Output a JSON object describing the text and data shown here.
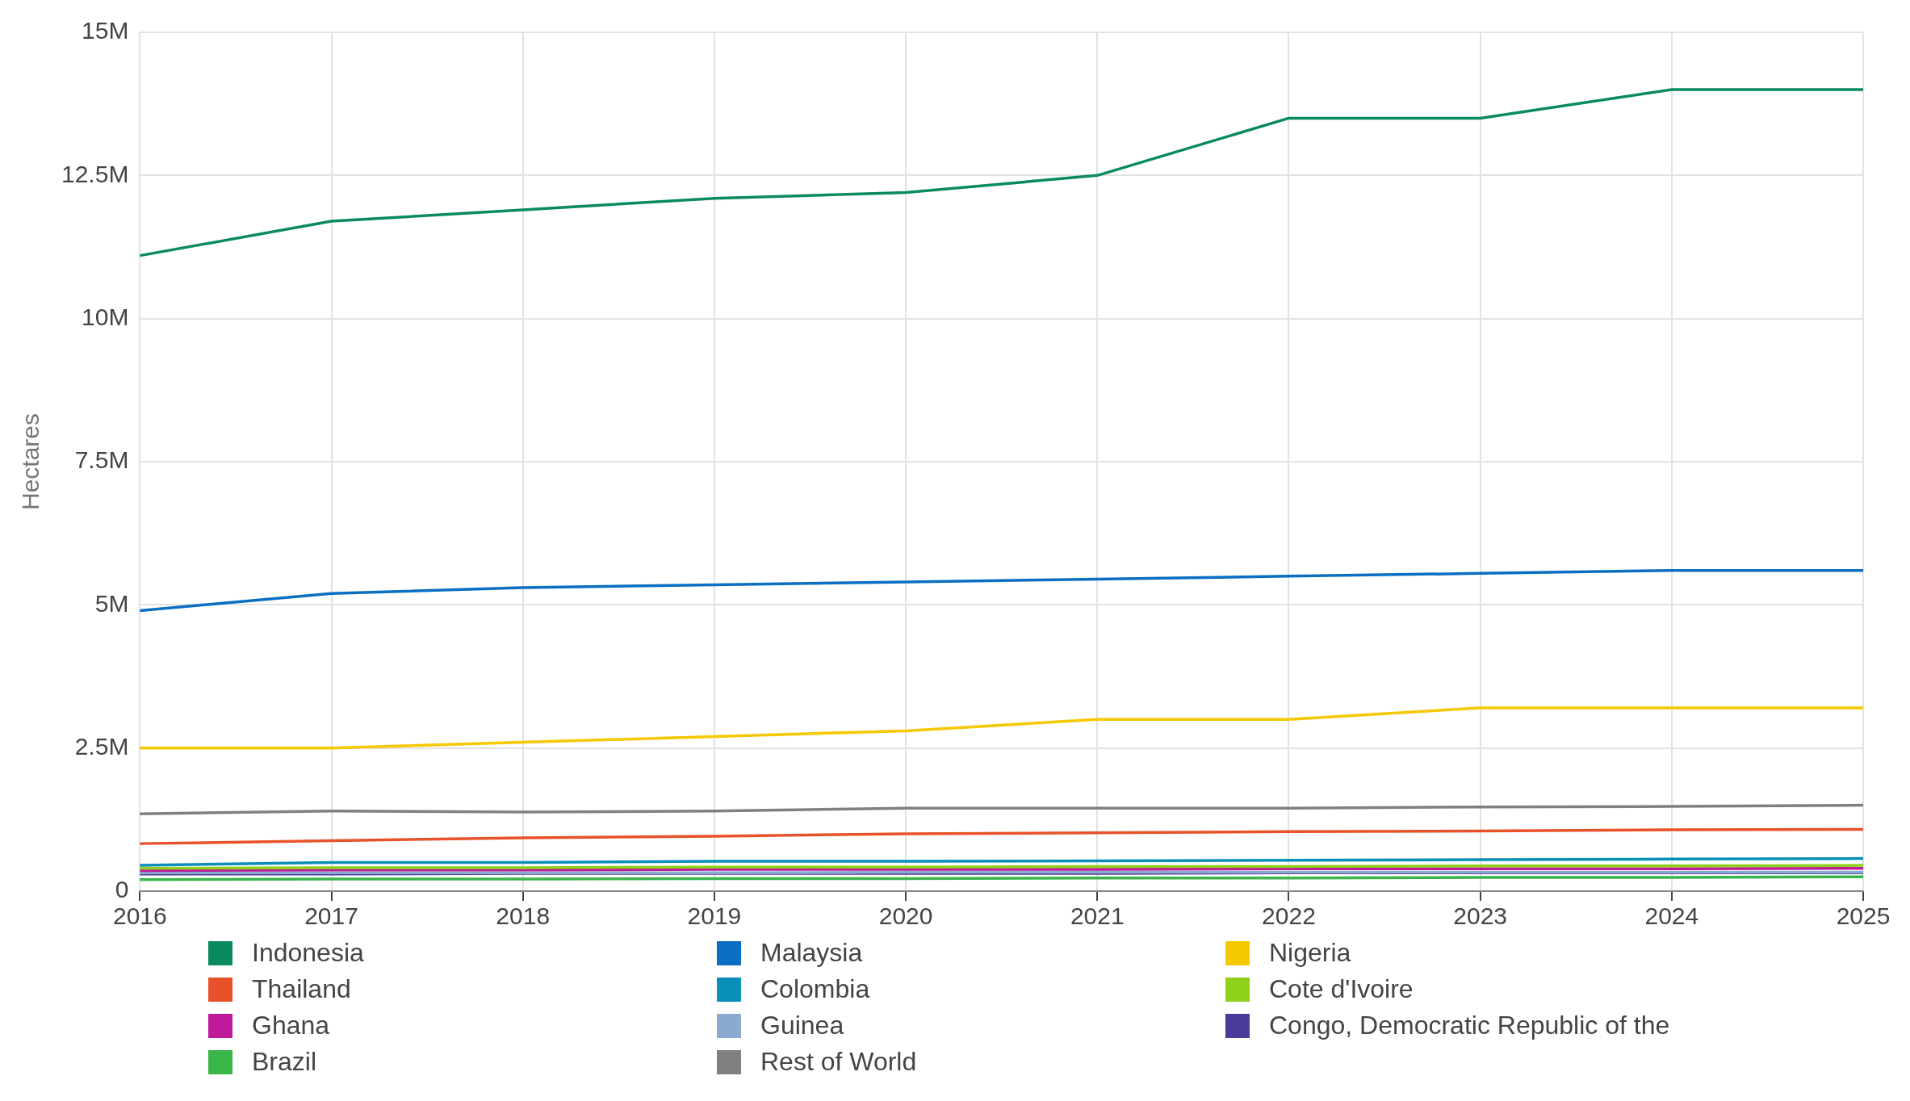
{
  "chart_data": {
    "type": "line",
    "ylabel": "Hectares",
    "categories": [
      "2016",
      "2017",
      "2018",
      "2019",
      "2020",
      "2021",
      "2022",
      "2023",
      "2024",
      "2025"
    ],
    "ylim": [
      0,
      15000000
    ],
    "yticks": [
      {
        "value": 0,
        "label": "0"
      },
      {
        "value": 2500000,
        "label": "2.5M"
      },
      {
        "value": 5000000,
        "label": "5M"
      },
      {
        "value": 7500000,
        "label": "7.5M"
      },
      {
        "value": 10000000,
        "label": "10M"
      },
      {
        "value": 12500000,
        "label": "12.5M"
      },
      {
        "value": 15000000,
        "label": "15M"
      }
    ],
    "grid": true,
    "legend": "bottom",
    "marker": "none",
    "line_style": "solid",
    "series": [
      {
        "name": "Indonesia",
        "color": "#0a8a5f",
        "values": [
          11100000,
          11700000,
          11900000,
          12100000,
          12200000,
          12500000,
          13500000,
          13500000,
          14000000,
          14000000
        ]
      },
      {
        "name": "Malaysia",
        "color": "#0a6fc2",
        "values": [
          4900000,
          5200000,
          5300000,
          5350000,
          5400000,
          5450000,
          5500000,
          5550000,
          5600000,
          5600000
        ]
      },
      {
        "name": "Nigeria",
        "color": "#f5c800",
        "values": [
          2500000,
          2500000,
          2600000,
          2700000,
          2800000,
          3000000,
          3000000,
          3200000,
          3200000,
          3200000
        ]
      },
      {
        "name": "Thailand",
        "color": "#e8522a",
        "values": [
          830000,
          880000,
          930000,
          960000,
          1000000,
          1020000,
          1040000,
          1050000,
          1070000,
          1080000
        ]
      },
      {
        "name": "Colombia",
        "color": "#0a8fb8",
        "values": [
          450000,
          500000,
          500000,
          520000,
          520000,
          530000,
          540000,
          550000,
          560000,
          570000
        ]
      },
      {
        "name": "Cote d'Ivoire",
        "color": "#8fd11a",
        "values": [
          400000,
          410000,
          410000,
          420000,
          420000,
          430000,
          430000,
          440000,
          440000,
          450000
        ]
      },
      {
        "name": "Ghana",
        "color": "#c0199a",
        "values": [
          360000,
          370000,
          370000,
          380000,
          380000,
          380000,
          390000,
          390000,
          390000,
          400000
        ]
      },
      {
        "name": "Guinea",
        "color": "#8aaad0",
        "values": [
          320000,
          320000,
          320000,
          320000,
          330000,
          330000,
          330000,
          330000,
          330000,
          330000
        ]
      },
      {
        "name": "Congo, Democratic Republic of the",
        "color": "#4a3a9a",
        "values": [
          300000,
          300000,
          310000,
          310000,
          310000,
          310000,
          320000,
          320000,
          320000,
          320000
        ]
      },
      {
        "name": "Brazil",
        "color": "#3ab54a",
        "values": [
          200000,
          210000,
          210000,
          220000,
          220000,
          230000,
          230000,
          240000,
          240000,
          250000
        ]
      },
      {
        "name": "Rest of World",
        "color": "#808080",
        "values": [
          1350000,
          1400000,
          1380000,
          1400000,
          1450000,
          1450000,
          1450000,
          1470000,
          1480000,
          1500000
        ]
      }
    ]
  }
}
